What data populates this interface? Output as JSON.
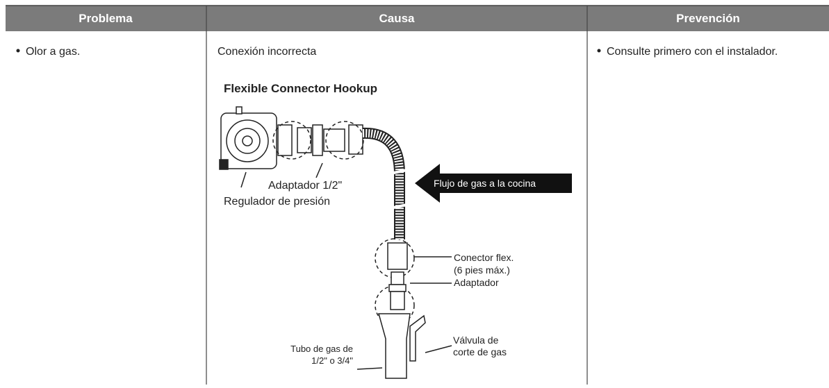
{
  "header": {
    "columns": [
      "Problema",
      "Causa",
      "Prevención"
    ]
  },
  "rows": [
    {
      "problema": "Olor a gas.",
      "causa": "Conexión incorrecta",
      "prevencion": "Consulte primero con el instalador."
    }
  ],
  "diagram": {
    "title": "Flexible Connector Hookup",
    "labels": {
      "adapter_half": "Adaptador 1/2\"",
      "regulator": "Regulador de presión",
      "flow": "Flujo de gas a la cocina",
      "connector_1": "Conector flex.",
      "connector_2": "(6 pies máx.)",
      "adapter": "Adaptador",
      "valve_1": "Válvula de",
      "valve_2": "corte de gas",
      "pipe_1": "Tubo de gas de",
      "pipe_2": "1/2\" o 3/4\""
    }
  }
}
